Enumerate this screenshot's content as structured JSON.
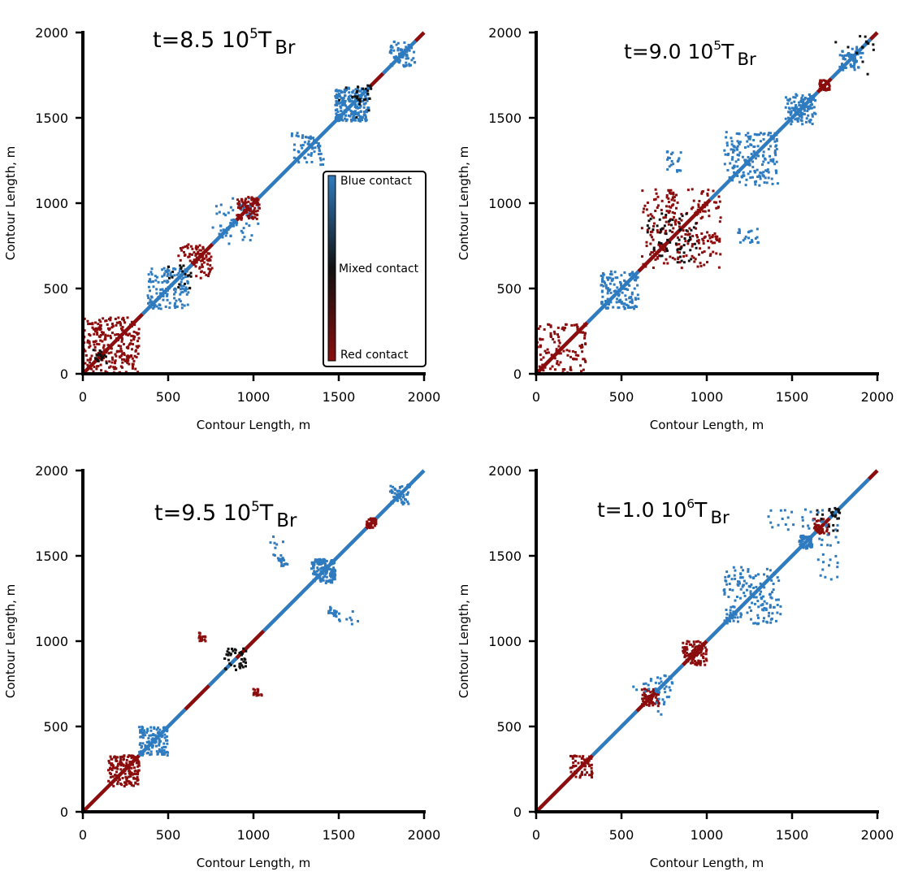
{
  "colors": {
    "blue": "#2f7bbf",
    "red": "#8b0d0d",
    "mixed": "#111111"
  },
  "chart_data": [
    {
      "type": "scatter",
      "title": {
        "prefix": "t=8.5 10",
        "exp": "5",
        "mid": "T",
        "sub": "Br"
      },
      "xlabel": "Contour Length, m",
      "ylabel": "Contour Length, m",
      "xlim": [
        0,
        2000
      ],
      "ylim": [
        0,
        2000
      ],
      "xticks": [
        0,
        500,
        1000,
        1500,
        2000
      ],
      "yticks": [
        0,
        500,
        1000,
        1500,
        2000
      ],
      "grid": false,
      "legend": {
        "position": "right",
        "type": "colorbar",
        "top": "Blue contact",
        "middle": "Mixed contact",
        "bottom": "Red contact"
      },
      "diagonal": [
        {
          "from": 0,
          "to": 350,
          "c": "red"
        },
        {
          "from": 350,
          "to": 640,
          "c": "blue"
        },
        {
          "from": 640,
          "to": 760,
          "c": "red"
        },
        {
          "from": 760,
          "to": 900,
          "c": "blue"
        },
        {
          "from": 900,
          "to": 1030,
          "c": "red"
        },
        {
          "from": 1030,
          "to": 1680,
          "c": "blue"
        },
        {
          "from": 1680,
          "to": 1760,
          "c": "red"
        },
        {
          "from": 1760,
          "to": 1950,
          "c": "blue"
        },
        {
          "from": 1950,
          "to": 2000,
          "c": "red"
        }
      ],
      "clusters": [
        {
          "x": [
            0,
            330
          ],
          "y": [
            0,
            330
          ],
          "c": "red",
          "n": 140
        },
        {
          "x": [
            60,
            120
          ],
          "y": [
            80,
            140
          ],
          "c": "mixed",
          "n": 10
        },
        {
          "x": [
            380,
            620
          ],
          "y": [
            380,
            620
          ],
          "c": "blue",
          "n": 70
        },
        {
          "x": [
            480,
            640
          ],
          "y": [
            560,
            640
          ],
          "c": "mixed",
          "n": 10
        },
        {
          "x": [
            560,
            740
          ],
          "y": [
            650,
            760
          ],
          "c": "red",
          "n": 45
        },
        {
          "x": [
            760,
            1000
          ],
          "y": [
            780,
            1030
          ],
          "c": "blue",
          "n": 30
        },
        {
          "x": [
            900,
            1030
          ],
          "y": [
            900,
            1040
          ],
          "c": "red",
          "n": 40
        },
        {
          "x": [
            1480,
            1680
          ],
          "y": [
            1480,
            1680
          ],
          "c": "blue",
          "n": 100
        },
        {
          "x": [
            1500,
            1690
          ],
          "y": [
            1600,
            1690
          ],
          "c": "mixed",
          "n": 14
        },
        {
          "x": [
            1800,
            1920
          ],
          "y": [
            1800,
            1950
          ],
          "c": "blue",
          "n": 35
        },
        {
          "x": [
            1220,
            1400
          ],
          "y": [
            1250,
            1420
          ],
          "c": "blue",
          "n": 30
        }
      ]
    },
    {
      "type": "scatter",
      "title": {
        "prefix": "t=9.0 10",
        "exp": "5",
        "mid": "T",
        "sub": "Br"
      },
      "xlabel": "Contour Length, m",
      "ylabel": "Contour Length, m",
      "xlim": [
        0,
        2000
      ],
      "ylim": [
        0,
        2000
      ],
      "xticks": [
        0,
        500,
        1000,
        1500,
        2000
      ],
      "yticks": [
        0,
        500,
        1000,
        1500,
        2000
      ],
      "grid": false,
      "diagonal": [
        {
          "from": 0,
          "to": 300,
          "c": "red"
        },
        {
          "from": 300,
          "to": 600,
          "c": "blue"
        },
        {
          "from": 600,
          "to": 1020,
          "c": "red"
        },
        {
          "from": 1020,
          "to": 1650,
          "c": "blue"
        },
        {
          "from": 1650,
          "to": 1730,
          "c": "red"
        },
        {
          "from": 1730,
          "to": 1960,
          "c": "blue"
        },
        {
          "from": 1960,
          "to": 2000,
          "c": "red"
        }
      ],
      "clusters": [
        {
          "x": [
            0,
            300
          ],
          "y": [
            0,
            300
          ],
          "c": "red",
          "n": 60
        },
        {
          "x": [
            380,
            600
          ],
          "y": [
            380,
            600
          ],
          "c": "blue",
          "n": 70
        },
        {
          "x": [
            640,
            1080
          ],
          "y": [
            620,
            1100
          ],
          "c": "red",
          "n": 120
        },
        {
          "x": [
            700,
            920
          ],
          "y": [
            650,
            940
          ],
          "c": "mixed",
          "n": 30
        },
        {
          "x": [
            1100,
            1420
          ],
          "y": [
            1150,
            1420
          ],
          "c": "blue",
          "n": 90
        },
        {
          "x": [
            1460,
            1640
          ],
          "y": [
            1480,
            1640
          ],
          "c": "blue",
          "n": 60
        },
        {
          "x": [
            1660,
            1720
          ],
          "y": [
            1660,
            1720
          ],
          "c": "red",
          "n": 20
        },
        {
          "x": [
            1780,
            1900
          ],
          "y": [
            1780,
            1920
          ],
          "c": "blue",
          "n": 30
        },
        {
          "x": [
            760,
            850
          ],
          "y": [
            1180,
            1320
          ],
          "c": "blue",
          "n": 20
        },
        {
          "x": [
            1800,
            1980
          ],
          "y": [
            1750,
            1980
          ],
          "c": "mixed",
          "n": 8
        }
      ]
    },
    {
      "type": "scatter",
      "title": {
        "prefix": "t=9.5 10",
        "exp": "5",
        "mid": "T",
        "sub": "Br"
      },
      "xlabel": "Contour Length, m",
      "ylabel": "Contour Length, m",
      "xlim": [
        0,
        2000
      ],
      "ylim": [
        0,
        2000
      ],
      "xticks": [
        0,
        500,
        1000,
        1500,
        2000
      ],
      "yticks": [
        0,
        500,
        1000,
        1500,
        2000
      ],
      "grid": false,
      "diagonal": [
        {
          "from": 0,
          "to": 330,
          "c": "red"
        },
        {
          "from": 330,
          "to": 600,
          "c": "blue"
        },
        {
          "from": 600,
          "to": 740,
          "c": "red"
        },
        {
          "from": 740,
          "to": 900,
          "c": "blue"
        },
        {
          "from": 900,
          "to": 1060,
          "c": "red"
        },
        {
          "from": 1060,
          "to": 1660,
          "c": "blue"
        },
        {
          "from": 1660,
          "to": 1720,
          "c": "red"
        },
        {
          "from": 1720,
          "to": 2000,
          "c": "blue"
        }
      ],
      "clusters": [
        {
          "x": [
            150,
            330
          ],
          "y": [
            170,
            330
          ],
          "c": "red",
          "n": 80
        },
        {
          "x": [
            340,
            500
          ],
          "y": [
            330,
            480
          ],
          "c": "blue",
          "n": 60
        },
        {
          "x": [
            820,
            960
          ],
          "y": [
            820,
            960
          ],
          "c": "mixed",
          "n": 20
        },
        {
          "x": [
            1340,
            1480
          ],
          "y": [
            1340,
            1480
          ],
          "c": "blue",
          "n": 70
        },
        {
          "x": [
            1660,
            1720
          ],
          "y": [
            1660,
            1720
          ],
          "c": "red",
          "n": 20
        },
        {
          "x": [
            1800,
            1920
          ],
          "y": [
            1800,
            1920
          ],
          "c": "blue",
          "n": 30
        },
        {
          "x": [
            1440,
            1490
          ],
          "y": [
            1140,
            1190
          ],
          "c": "blue",
          "n": 12
        },
        {
          "x": [
            1080,
            1200
          ],
          "y": [
            1440,
            1620
          ],
          "c": "blue",
          "n": 14
        },
        {
          "x": [
            1000,
            1050
          ],
          "y": [
            680,
            700
          ],
          "c": "red",
          "n": 10
        },
        {
          "x": [
            680,
            720
          ],
          "y": [
            1000,
            1030
          ],
          "c": "red",
          "n": 8
        }
      ]
    },
    {
      "type": "scatter",
      "title": {
        "prefix": "t=1.0 10",
        "exp": "6",
        "mid": "T",
        "sub": "Br"
      },
      "xlabel": "Contour Length, m",
      "ylabel": "Contour Length, m",
      "xlim": [
        0,
        2000
      ],
      "ylim": [
        0,
        2000
      ],
      "xticks": [
        0,
        500,
        1000,
        1500,
        2000
      ],
      "yticks": [
        0,
        500,
        1000,
        1500,
        2000
      ],
      "grid": false,
      "diagonal": [
        {
          "from": 0,
          "to": 330,
          "c": "red"
        },
        {
          "from": 330,
          "to": 590,
          "c": "blue"
        },
        {
          "from": 590,
          "to": 700,
          "c": "red"
        },
        {
          "from": 700,
          "to": 860,
          "c": "blue"
        },
        {
          "from": 860,
          "to": 1000,
          "c": "red"
        },
        {
          "from": 1000,
          "to": 1640,
          "c": "blue"
        },
        {
          "from": 1640,
          "to": 1720,
          "c": "red"
        },
        {
          "from": 1720,
          "to": 1950,
          "c": "blue"
        },
        {
          "from": 1950,
          "to": 2000,
          "c": "red"
        }
      ],
      "clusters": [
        {
          "x": [
            200,
            330
          ],
          "y": [
            200,
            330
          ],
          "c": "red",
          "n": 30
        },
        {
          "x": [
            620,
            720
          ],
          "y": [
            620,
            720
          ],
          "c": "red",
          "n": 35
        },
        {
          "x": [
            860,
            1000
          ],
          "y": [
            860,
            1000
          ],
          "c": "red",
          "n": 50
        },
        {
          "x": [
            1100,
            1440
          ],
          "y": [
            1100,
            1400
          ],
          "c": "blue",
          "n": 80
        },
        {
          "x": [
            1540,
            1620
          ],
          "y": [
            1540,
            1620
          ],
          "c": "blue",
          "n": 30
        },
        {
          "x": [
            1620,
            1720
          ],
          "y": [
            1640,
            1720
          ],
          "c": "red",
          "n": 20
        },
        {
          "x": [
            1700,
            1800
          ],
          "y": [
            1600,
            1780
          ],
          "c": "mixed",
          "n": 12
        },
        {
          "x": [
            1350,
            1700
          ],
          "y": [
            1650,
            1780
          ],
          "c": "blue",
          "n": 25
        },
        {
          "x": [
            700,
            800
          ],
          "y": [
            560,
            800
          ],
          "c": "blue",
          "n": 20
        }
      ]
    }
  ]
}
